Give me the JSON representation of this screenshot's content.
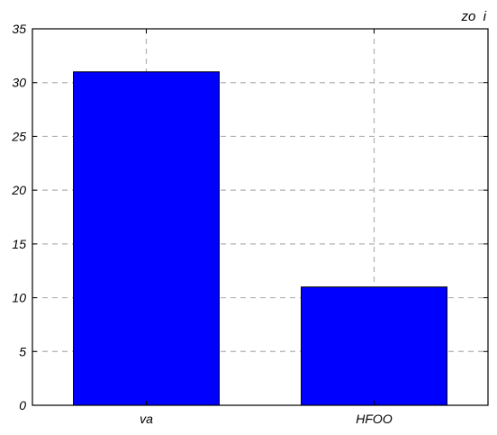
{
  "chart_data": {
    "type": "bar",
    "title": "",
    "xlabel": "",
    "ylabel": "",
    "corner_label": "zo  i",
    "categories": [
      "va",
      "HFOO"
    ],
    "series": [
      {
        "values": [
          31,
          11
        ]
      }
    ],
    "ylim": [
      0,
      35
    ],
    "yticks": [
      0,
      5,
      10,
      15,
      20,
      25,
      30,
      35
    ],
    "ytick_labels": [
      "0",
      "5",
      "10",
      "15",
      "20",
      "25",
      "30",
      "35"
    ],
    "grid": true,
    "legend": "none",
    "colors": {
      "bar_fill": "#0000ff",
      "bar_stroke": "#000000",
      "grid": "#b0b0b0",
      "axes": "#000000",
      "background": "#ffffff"
    }
  }
}
